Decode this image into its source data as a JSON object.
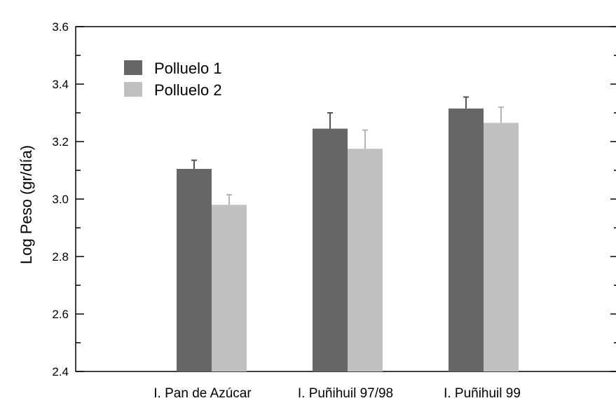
{
  "chart_data": {
    "type": "bar",
    "ylabel": "Log Peso (gr/día)",
    "ylim": [
      2.4,
      3.6
    ],
    "yticks": [
      "2.4",
      "2.6",
      "2.8",
      "3.0",
      "3.2",
      "3.4",
      "3.6"
    ],
    "categories": [
      "I. Pan de Azúcar",
      "I. Puñihuil 97/98",
      "I. Puñihuil 99"
    ],
    "series": [
      {
        "name": "Polluelo 1",
        "color": "#666666",
        "values": [
          3.105,
          3.245,
          3.315
        ],
        "errors": [
          0.03,
          0.055,
          0.04
        ]
      },
      {
        "name": "Polluelo 2",
        "color": "#c0c0c0",
        "values": [
          2.98,
          3.175,
          3.265
        ],
        "errors": [
          0.035,
          0.065,
          0.055
        ]
      }
    ],
    "legend": "top-left",
    "grid": false
  }
}
